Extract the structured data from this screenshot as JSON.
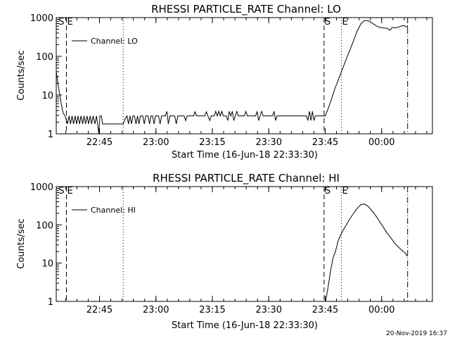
{
  "footer_stamp": "20-Nov-2019 16:37",
  "chart_data": [
    {
      "type": "line",
      "title": "RHESSI PARTICLE_RATE Channel: LO",
      "xlabel": "Start Time (16-Jun-18 22:33:30)",
      "ylabel": "Counts/sec",
      "x_unit": "minutes after 22:33:30",
      "xlim": [
        0,
        100
      ],
      "ylim": [
        1,
        1000
      ],
      "yscale": "log",
      "x_ticks": [
        {
          "label": "22:45",
          "x": 11.5
        },
        {
          "label": "23:00",
          "x": 26.5
        },
        {
          "label": "23:15",
          "x": 41.5
        },
        {
          "label": "23:30",
          "x": 56.5
        },
        {
          "label": "23:45",
          "x": 71.5
        },
        {
          "label": "00:00",
          "x": 86.5
        }
      ],
      "y_ticks": [
        {
          "label": "1",
          "y": 1
        },
        {
          "label": "10",
          "y": 10
        },
        {
          "label": "100",
          "y": 100
        },
        {
          "label": "1000",
          "y": 1000
        }
      ],
      "legend": {
        "entry": "Channel: LO",
        "placement": "top-left"
      },
      "markers": [
        {
          "label": "S",
          "x": 0.4,
          "style": "none"
        },
        {
          "label": "E",
          "x": 2.7,
          "style": "dashed"
        },
        {
          "label": "",
          "x": 17.8,
          "style": "dotted"
        },
        {
          "label": "S",
          "x": 71.2,
          "style": "dashed"
        },
        {
          "label": "E",
          "x": 75.8,
          "style": "dotted"
        },
        {
          "label": "",
          "x": 93.4,
          "style": "dashdot"
        }
      ],
      "series": [
        {
          "name": "Channel: LO",
          "points": [
            [
              0.0,
              40
            ],
            [
              0.5,
              18
            ],
            [
              1.2,
              7
            ],
            [
              1.8,
              3.5
            ],
            [
              2.4,
              2.8
            ],
            [
              3.0,
              1.8
            ],
            [
              3.4,
              2.9
            ],
            [
              3.8,
              1.8
            ],
            [
              4.2,
              2.9
            ],
            [
              4.6,
              1.8
            ],
            [
              5.0,
              2.9
            ],
            [
              5.4,
              1.8
            ],
            [
              5.8,
              2.9
            ],
            [
              6.2,
              1.8
            ],
            [
              6.6,
              2.9
            ],
            [
              7.0,
              1.8
            ],
            [
              7.4,
              2.9
            ],
            [
              7.8,
              1.8
            ],
            [
              8.2,
              2.9
            ],
            [
              8.6,
              1.8
            ],
            [
              9.0,
              2.9
            ],
            [
              9.4,
              1.8
            ],
            [
              9.8,
              2.9
            ],
            [
              10.3,
              1.8
            ],
            [
              10.7,
              2.9
            ],
            [
              11.0,
              1.8
            ],
            [
              11.3,
              1.0
            ],
            [
              11.6,
              2.9
            ],
            [
              12.0,
              2.9
            ],
            [
              12.3,
              1.8
            ],
            [
              17.8,
              1.8
            ],
            [
              18.3,
              2.4
            ],
            [
              18.8,
              2.9
            ],
            [
              19.2,
              1.8
            ],
            [
              19.6,
              2.9
            ],
            [
              20.0,
              1.8
            ],
            [
              20.4,
              2.9
            ],
            [
              20.8,
              2.9
            ],
            [
              21.2,
              1.8
            ],
            [
              21.6,
              2.9
            ],
            [
              22.0,
              1.8
            ],
            [
              22.4,
              2.9
            ],
            [
              23.0,
              2.9
            ],
            [
              23.4,
              1.8
            ],
            [
              23.8,
              2.9
            ],
            [
              24.4,
              2.9
            ],
            [
              24.8,
              1.8
            ],
            [
              25.2,
              2.9
            ],
            [
              25.6,
              2.9
            ],
            [
              26.0,
              1.8
            ],
            [
              26.4,
              2.9
            ],
            [
              27.2,
              2.9
            ],
            [
              27.6,
              1.8
            ],
            [
              28.0,
              2.9
            ],
            [
              29.0,
              2.9
            ],
            [
              29.4,
              3.8
            ],
            [
              29.8,
              1.8
            ],
            [
              30.2,
              2.9
            ],
            [
              31.5,
              2.9
            ],
            [
              31.9,
              1.8
            ],
            [
              32.3,
              2.9
            ],
            [
              34.0,
              2.9
            ],
            [
              34.4,
              2.2
            ],
            [
              34.8,
              2.9
            ],
            [
              36.5,
              2.9
            ],
            [
              36.9,
              3.7
            ],
            [
              37.3,
              2.9
            ],
            [
              39.5,
              2.9
            ],
            [
              39.9,
              3.7
            ],
            [
              40.3,
              2.9
            ],
            [
              40.8,
              2.2
            ],
            [
              41.2,
              2.9
            ],
            [
              42.0,
              2.9
            ],
            [
              42.4,
              3.8
            ],
            [
              42.8,
              2.9
            ],
            [
              43.2,
              3.8
            ],
            [
              43.6,
              2.9
            ],
            [
              44.0,
              3.8
            ],
            [
              44.4,
              2.9
            ],
            [
              45.2,
              2.9
            ],
            [
              45.6,
              2.2
            ],
            [
              46.0,
              3.8
            ],
            [
              46.4,
              2.9
            ],
            [
              46.8,
              3.8
            ],
            [
              47.2,
              2.2
            ],
            [
              47.6,
              2.9
            ],
            [
              48.0,
              3.8
            ],
            [
              48.4,
              2.9
            ],
            [
              50.0,
              2.9
            ],
            [
              50.4,
              3.8
            ],
            [
              50.8,
              2.9
            ],
            [
              53.0,
              2.9
            ],
            [
              53.4,
              3.8
            ],
            [
              53.8,
              2.2
            ],
            [
              54.2,
              2.9
            ],
            [
              54.6,
              3.8
            ],
            [
              55.0,
              2.9
            ],
            [
              57.5,
              2.9
            ],
            [
              57.9,
              3.8
            ],
            [
              58.3,
              2.2
            ],
            [
              58.7,
              2.9
            ],
            [
              60.0,
              2.9
            ],
            [
              66.5,
              2.9
            ],
            [
              66.9,
              2.2
            ],
            [
              67.3,
              3.8
            ],
            [
              67.7,
              2.2
            ],
            [
              68.1,
              3.8
            ],
            [
              68.5,
              2.2
            ],
            [
              68.9,
              2.9
            ],
            [
              71.5,
              2.9
            ],
            [
              72.3,
              4.5
            ],
            [
              73.2,
              8
            ],
            [
              74.0,
              14
            ],
            [
              75.0,
              25
            ],
            [
              76.0,
              45
            ],
            [
              77.0,
              80
            ],
            [
              78.0,
              140
            ],
            [
              79.0,
              250
            ],
            [
              80.0,
              450
            ],
            [
              81.0,
              700
            ],
            [
              82.0,
              850
            ],
            [
              83.0,
              820
            ],
            [
              84.0,
              720
            ],
            [
              85.0,
              620
            ],
            [
              86.0,
              560
            ],
            [
              87.0,
              540
            ],
            [
              88.0,
              530
            ],
            [
              88.7,
              470
            ],
            [
              89.3,
              560
            ],
            [
              90.0,
              540
            ],
            [
              90.8,
              560
            ],
            [
              91.5,
              600
            ],
            [
              92.5,
              620
            ],
            [
              93.3,
              560
            ],
            [
              93.4,
              620
            ]
          ]
        }
      ]
    },
    {
      "type": "line",
      "title": "RHESSI PARTICLE_RATE Channel: HI",
      "xlabel": "Start Time (16-Jun-18 22:33:30)",
      "ylabel": "Counts/sec",
      "x_unit": "minutes after 22:33:30",
      "xlim": [
        0,
        100
      ],
      "ylim": [
        1,
        1000
      ],
      "yscale": "log",
      "x_ticks": [
        {
          "label": "22:45",
          "x": 11.5
        },
        {
          "label": "23:00",
          "x": 26.5
        },
        {
          "label": "23:15",
          "x": 41.5
        },
        {
          "label": "23:30",
          "x": 56.5
        },
        {
          "label": "23:45",
          "x": 71.5
        },
        {
          "label": "00:00",
          "x": 86.5
        }
      ],
      "y_ticks": [
        {
          "label": "1",
          "y": 1
        },
        {
          "label": "10",
          "y": 10
        },
        {
          "label": "100",
          "y": 100
        },
        {
          "label": "1000",
          "y": 1000
        }
      ],
      "legend": {
        "entry": "Channel: HI",
        "placement": "top-left"
      },
      "markers": [
        {
          "label": "S",
          "x": 0.4,
          "style": "none"
        },
        {
          "label": "E",
          "x": 2.7,
          "style": "dashed"
        },
        {
          "label": "",
          "x": 17.8,
          "style": "dotted"
        },
        {
          "label": "S",
          "x": 71.2,
          "style": "dashed"
        },
        {
          "label": "E",
          "x": 75.8,
          "style": "dotted"
        },
        {
          "label": "",
          "x": 93.4,
          "style": "dashdot"
        }
      ],
      "series": [
        {
          "name": "Channel: HI",
          "points": [
            [
              71.6,
              1
            ],
            [
              72.2,
              2.2
            ],
            [
              73.0,
              7
            ],
            [
              73.6,
              14
            ],
            [
              74.2,
              20
            ],
            [
              75.0,
              40
            ],
            [
              76.0,
              65
            ],
            [
              77.0,
              95
            ],
            [
              78.0,
              140
            ],
            [
              79.0,
              200
            ],
            [
              80.0,
              270
            ],
            [
              81.0,
              340
            ],
            [
              82.0,
              350
            ],
            [
              83.0,
              300
            ],
            [
              84.0,
              230
            ],
            [
              85.0,
              170
            ],
            [
              86.0,
              120
            ],
            [
              87.0,
              85
            ],
            [
              88.0,
              60
            ],
            [
              89.0,
              45
            ],
            [
              90.0,
              33
            ],
            [
              91.0,
              26
            ],
            [
              92.0,
              21
            ],
            [
              92.6,
              19
            ],
            [
              93.0,
              17
            ],
            [
              93.3,
              15
            ]
          ]
        }
      ]
    }
  ]
}
